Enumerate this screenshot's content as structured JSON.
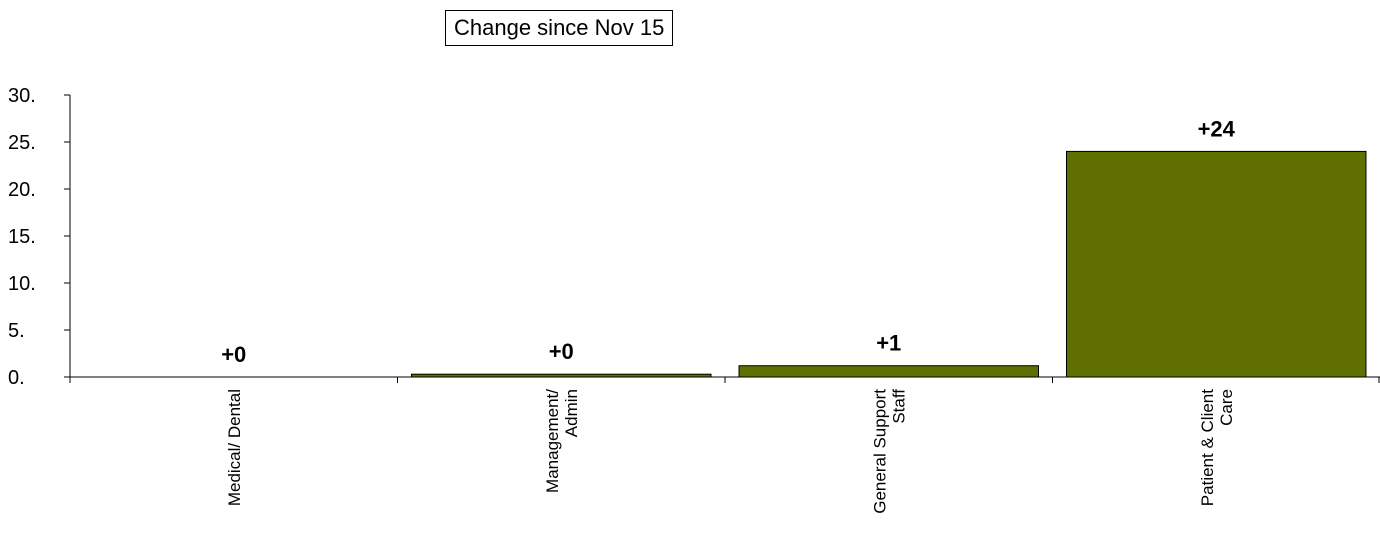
{
  "chart_data": {
    "type": "bar",
    "title": "Change since Nov 15",
    "xlabel": "",
    "ylabel": "",
    "categories": [
      [
        "Medical/ Dental"
      ],
      [
        "Management/",
        "Admin"
      ],
      [
        "General Support",
        "Staff"
      ],
      [
        "Patient & Client",
        "Care"
      ]
    ],
    "values": [
      0,
      0.3,
      1.2,
      24
    ],
    "data_labels": [
      "+0",
      "+0",
      "+1",
      "+24"
    ],
    "ylim": [
      0,
      30
    ],
    "yticks": [
      0,
      5,
      10,
      15,
      20,
      25,
      30
    ],
    "ytick_labels": [
      "0.",
      "5.",
      "10.",
      "15.",
      "20.",
      "25.",
      "30."
    ],
    "grid": false,
    "legend": "none",
    "bar_color": "#5f6f00"
  }
}
